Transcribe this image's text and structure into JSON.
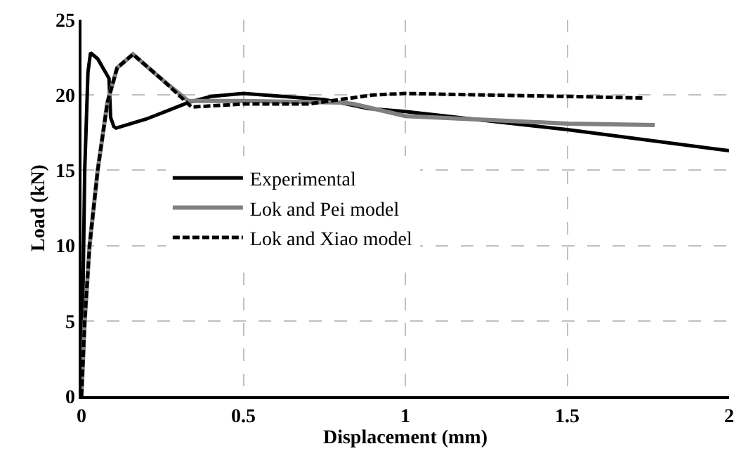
{
  "chart_data": {
    "type": "line",
    "xlabel": "Displacement (mm)",
    "ylabel": "Load (kN)",
    "xlim": [
      0,
      2
    ],
    "ylim": [
      0,
      25
    ],
    "xticks": [
      0,
      0.5,
      1,
      1.5,
      2
    ],
    "yticks": [
      0,
      5,
      10,
      15,
      20,
      25
    ],
    "grid": true,
    "legend": "left",
    "marker": "none",
    "series": [
      {
        "name": "Experimental",
        "color": "#000000",
        "line_style": "solid",
        "x": [
          0,
          0.01,
          0.02,
          0.028,
          0.05,
          0.085,
          0.09,
          0.1,
          0.107,
          0.2,
          0.33,
          0.4,
          0.5,
          0.75,
          0.886,
          1.0,
          1.5,
          2.0
        ],
        "values": [
          0,
          15,
          21.5,
          22.8,
          22.4,
          21.1,
          18.5,
          17.9,
          17.8,
          18.4,
          19.5,
          19.9,
          20.1,
          19.7,
          19.1,
          18.9,
          17.7,
          16.3
        ]
      },
      {
        "name": "Lok and Pei model",
        "color": "#808080",
        "line_style": "solid",
        "x": [
          0,
          0.01,
          0.025,
          0.05,
          0.08,
          0.11,
          0.159,
          0.25,
          0.33,
          0.5,
          0.8,
          0.84,
          1.0,
          1.5,
          1.77
        ],
        "values": [
          0,
          5,
          10,
          15,
          19.5,
          21.8,
          22.7,
          21.0,
          19.6,
          19.6,
          19.5,
          19.4,
          18.6,
          18.1,
          18.0
        ]
      },
      {
        "name": "Lok and Xiao model",
        "color": "#000000",
        "line_style": "dashed",
        "x": [
          0,
          0.01,
          0.025,
          0.05,
          0.08,
          0.11,
          0.159,
          0.25,
          0.34,
          0.5,
          0.7,
          0.9,
          1.0,
          1.5,
          1.74
        ],
        "values": [
          0,
          5,
          10,
          15,
          19.5,
          21.8,
          22.7,
          21.0,
          19.2,
          19.4,
          19.4,
          20.0,
          20.1,
          19.9,
          19.8
        ]
      }
    ]
  }
}
